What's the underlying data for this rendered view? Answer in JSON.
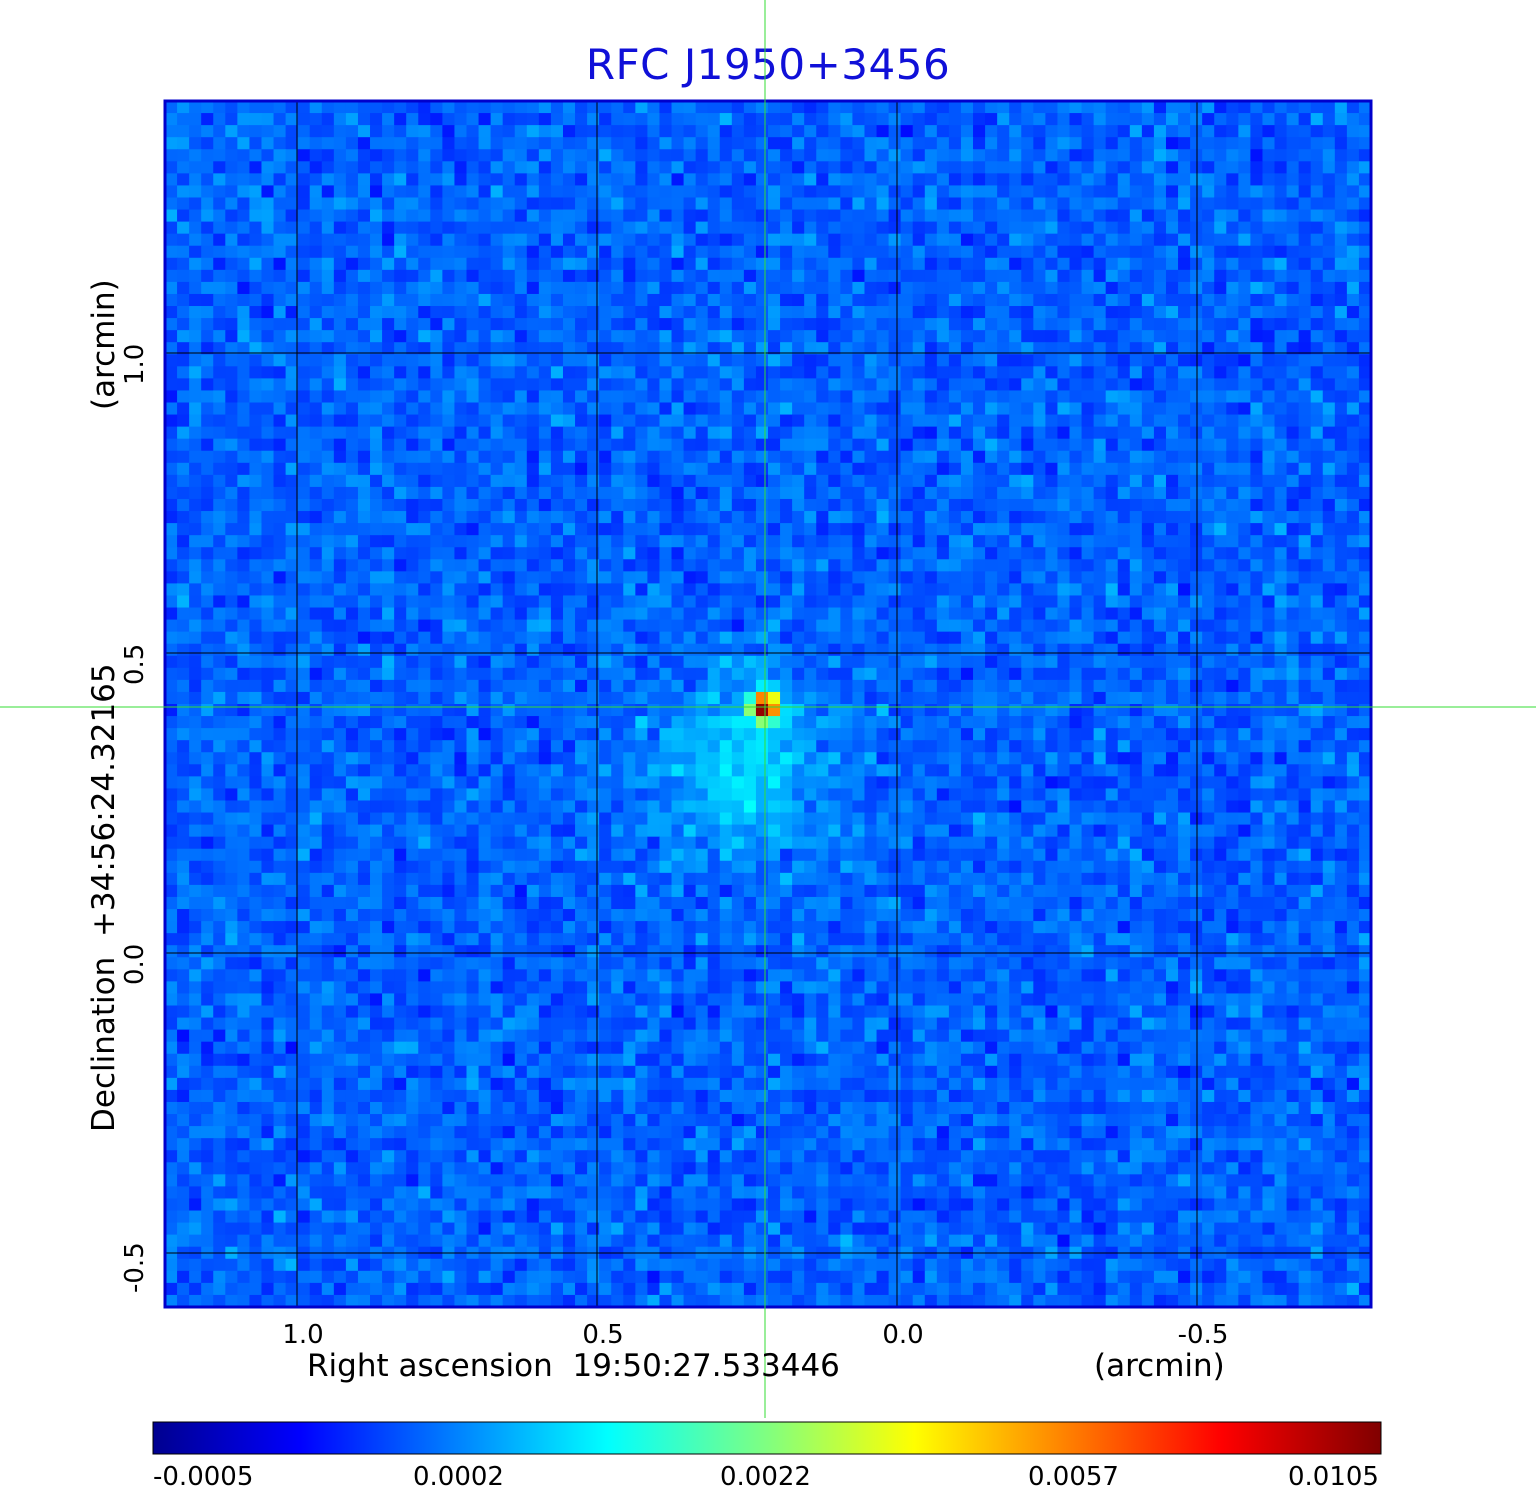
{
  "chart_data": {
    "type": "heatmap",
    "title": "RFC J1950+3456",
    "xlabel": "Right ascension  19:50:27.533446",
    "xunit": "(arcmin)",
    "ylabel": "Declination  +34:56:24.32165",
    "yunit": "(arcmin)",
    "x_range": [
      1.22,
      -0.79
    ],
    "y_range": [
      -0.59,
      1.42
    ],
    "x_ticks": [
      "1.0",
      "0.5",
      "0.0",
      "-0.5"
    ],
    "x_tick_values": [
      1.0,
      0.5,
      0.0,
      -0.5
    ],
    "y_ticks": [
      "1.0",
      "0.5",
      "0.0",
      "-0.5"
    ],
    "y_tick_values": [
      1.0,
      0.5,
      0.0,
      -0.5
    ],
    "grid": true,
    "crosshair": {
      "x": 0.22,
      "y": 0.41,
      "color": "#33dd33"
    },
    "source_peak": {
      "x": 0.22,
      "y": 0.41
    },
    "colormap": "jet",
    "colorbar_ticks": [
      "-0.0005",
      "0.0002",
      "0.0022",
      "0.0057",
      "0.0105"
    ],
    "colorbar_range": [
      -0.0005,
      0.0105
    ],
    "frame_color": "#0000cc",
    "title_color": "#1010d8"
  }
}
